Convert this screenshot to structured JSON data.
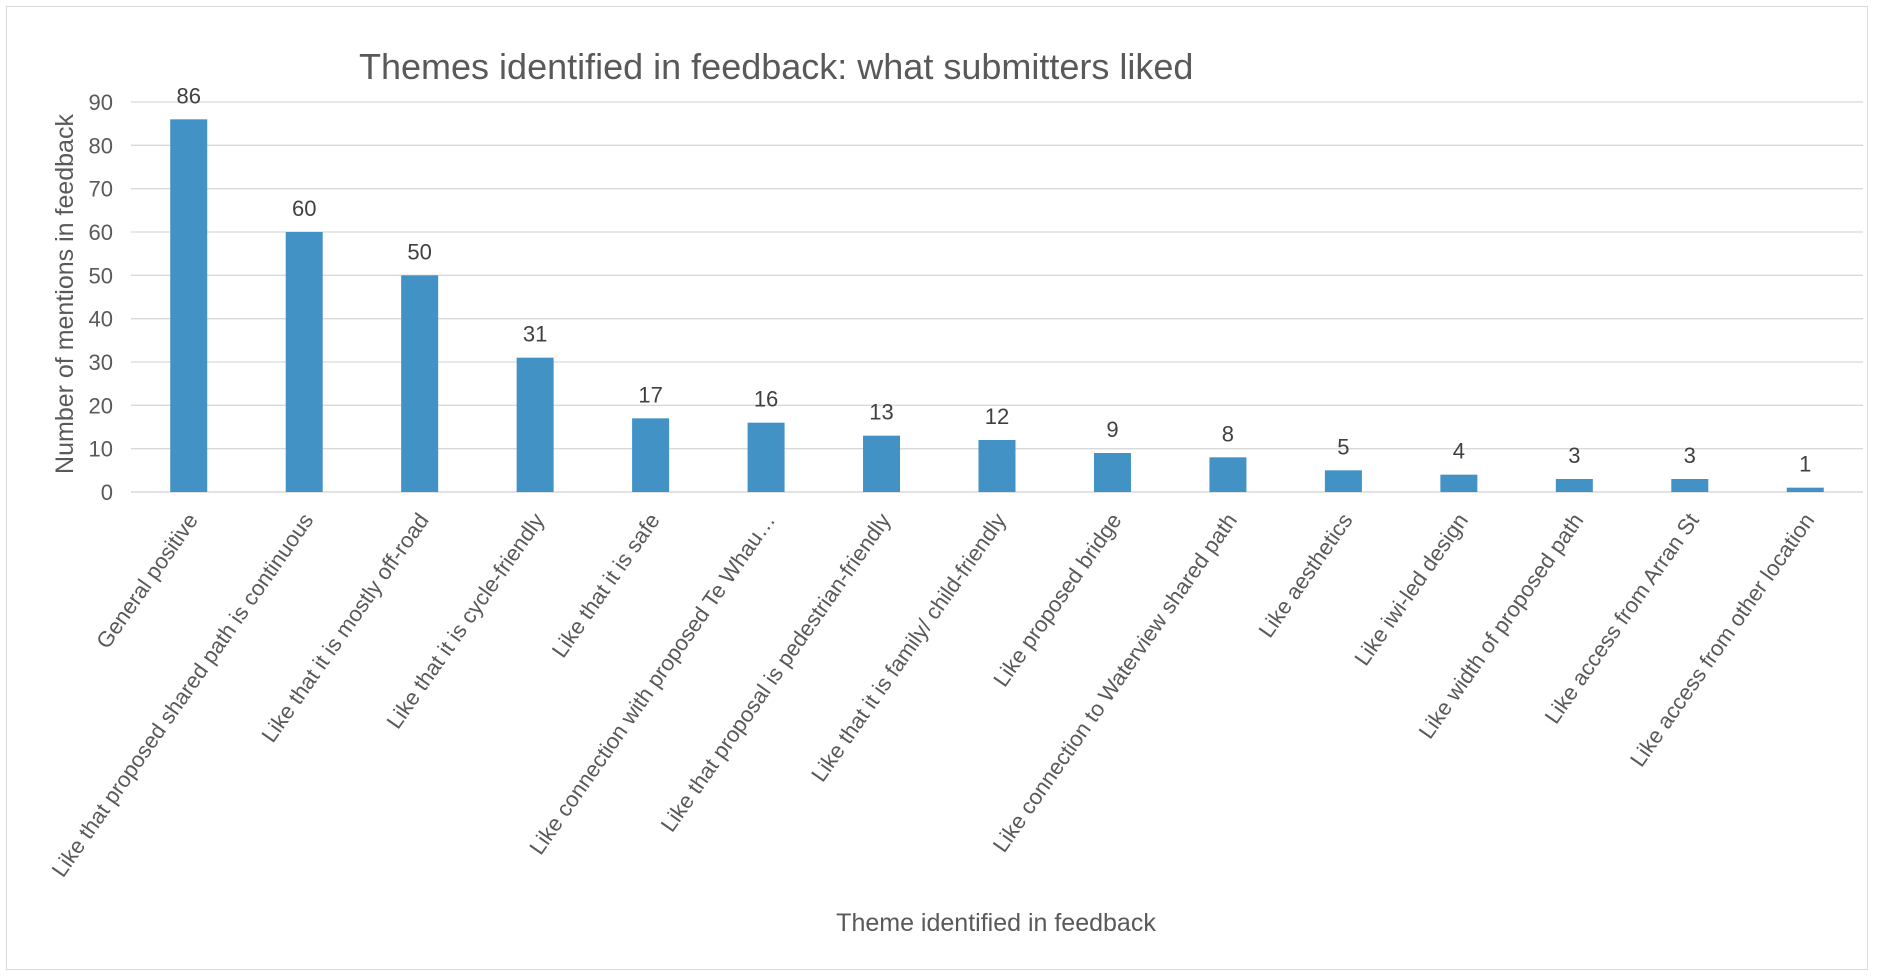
{
  "chart_data": {
    "type": "bar",
    "title": "Themes identified in feedback: what submitters liked",
    "xlabel": "Theme identified in feedback",
    "ylabel": "Number of mentions in feedback",
    "ylim": [
      0,
      90
    ],
    "yticks": [
      0,
      10,
      20,
      30,
      40,
      50,
      60,
      70,
      80,
      90
    ],
    "grid": true,
    "legend": "none",
    "bar_color": "#4292c6",
    "categories": [
      "General positive",
      "Like that proposed shared path is continuous",
      "Like that it is mostly off-road",
      "Like that it is cycle-friendly",
      "Like that it is safe",
      "Like connection with proposed Te Whau…",
      "Like that proposal is pedestrian-friendly",
      "Like that it is family/ child-friendly",
      "Like proposed bridge",
      "Like connection to Waterview shared path",
      "Like aesthetics",
      "Like iwi-led design",
      "Like width of proposed path",
      "Like access from Arran St",
      "Like access from other location"
    ],
    "values": [
      86,
      60,
      50,
      31,
      17,
      16,
      13,
      12,
      9,
      8,
      5,
      4,
      3,
      3,
      1
    ]
  }
}
